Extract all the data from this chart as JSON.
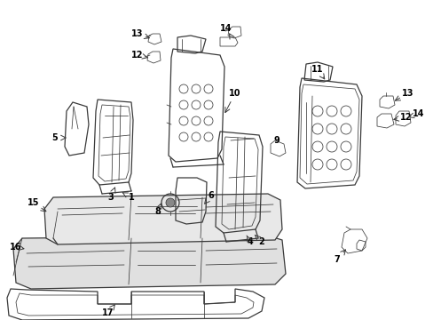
{
  "background_color": "#ffffff",
  "line_color": "#3a3a3a",
  "label_color": "#000000",
  "figsize": [
    4.89,
    3.6
  ],
  "dpi": 100,
  "lw_main": 0.9,
  "lw_thin": 0.55,
  "lw_thick": 1.2,
  "label_fontsize": 7.0
}
